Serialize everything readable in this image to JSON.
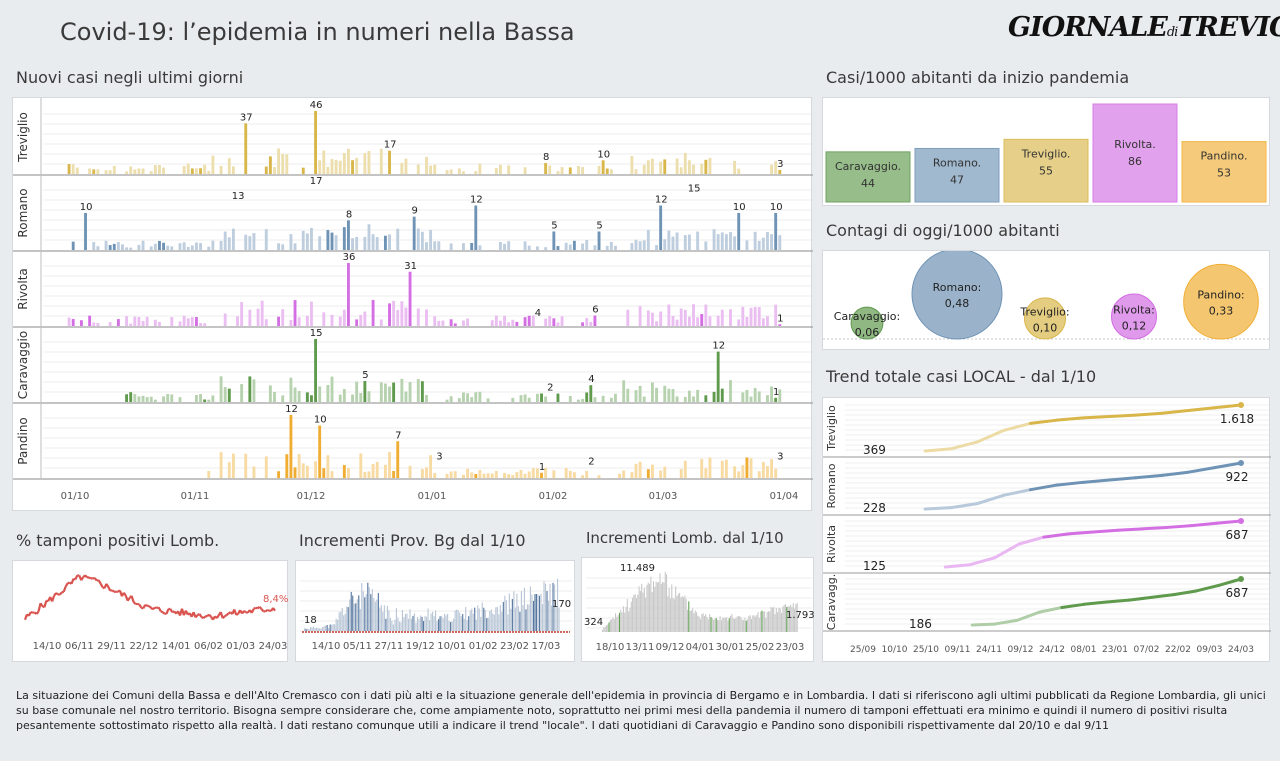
{
  "title": "Covid-19: l’epidemia  in numeri nella Bassa",
  "logo": {
    "main": "GIORNALE",
    "small": "di",
    "tail": "TREVIGLIO"
  },
  "sections": {
    "new_cases": "Nuovi casi negli ultimi  giorni",
    "per1000": "Casi/1000 abitanti da inizio pandemia",
    "today": "Contagi di oggi/1000 abitanti",
    "trend": "Trend totale casi  LOCAL - dal 1/10",
    "tamponi": "% tamponi positivi Lomb.",
    "prov_bg": "Incrementi Prov. Bg dal 1/10",
    "lomb": "Incrementi Lomb. dal 1/10"
  },
  "colors": {
    "treviglio": "#d8b64a",
    "romano": "#6f93b5",
    "rivolta": "#d36fe3",
    "caravaggio": "#5f9a4d",
    "pandino": "#f0ad33",
    "red": "#d9534f"
  },
  "footer": "La situazione dei Comuni della Bassa e dell'Alto Cremasco con i dati più alti e la situazione generale dell'epidemia in provincia di Bergamo e in Lombardia.  I dati si riferiscono agli ultimi pubblicati da Regione Lombardia, gli unici su base comunale nel  nostro territorio.  Bisogna sempre considerare che, come ampiamente noto, soprattutto nei primi mesi della pandemia il numero di tamponi effettuati era minimo e quindi il numero di positivi risulta pesantemente sottostimato rispetto alla realtà. I dati restano comunque utili a indicare il trend \"locale\".  I dati quotidiani di Caravaggio e Pandino sono disponibili rispettivamente dal 20/10 e dal 9/11",
  "chart_data": [
    {
      "type": "bar",
      "name": "new_cases",
      "x_ticks": [
        "01/10",
        "01/11",
        "01/12",
        "01/01",
        "01/02",
        "01/03",
        "01/04"
      ],
      "series": [
        {
          "name": "Treviglio",
          "ymax": 46,
          "labels": [
            {
              "day": 49,
              "value": 37
            },
            {
              "day": 66,
              "value": 46
            },
            {
              "day": 84,
              "value": 17
            },
            {
              "day": 122,
              "value": 8
            },
            {
              "day": 136,
              "value": 10
            },
            {
              "day": 179,
              "value": 3
            }
          ]
        },
        {
          "name": "Romano",
          "ymax": 17,
          "labels": [
            {
              "day": 10,
              "value": 10
            },
            {
              "day": 47,
              "value": 13
            },
            {
              "day": 66,
              "value": 17
            },
            {
              "day": 74,
              "value": 8
            },
            {
              "day": 90,
              "value": 9
            },
            {
              "day": 105,
              "value": 12
            },
            {
              "day": 124,
              "value": 5
            },
            {
              "day": 135,
              "value": 5
            },
            {
              "day": 169,
              "value": 10
            },
            {
              "day": 150,
              "value": 12
            },
            {
              "day": 158,
              "value": 15
            },
            {
              "day": 178,
              "value": 10
            }
          ]
        },
        {
          "name": "Rivolta",
          "ymax": 36,
          "labels": [
            {
              "day": 74,
              "value": 36
            },
            {
              "day": 89,
              "value": 31
            },
            {
              "day": 120,
              "value": 4
            },
            {
              "day": 134,
              "value": 6
            },
            {
              "day": 179,
              "value": 1
            }
          ]
        },
        {
          "name": "Caravaggio",
          "ymax": 15,
          "start_day": 20,
          "labels": [
            {
              "day": 66,
              "value": 15
            },
            {
              "day": 78,
              "value": 5
            },
            {
              "day": 123,
              "value": 2
            },
            {
              "day": 133,
              "value": 4
            },
            {
              "day": 164,
              "value": 12
            },
            {
              "day": 178,
              "value": 1
            }
          ]
        },
        {
          "name": "Pandino",
          "ymax": 12,
          "start_day": 40,
          "labels": [
            {
              "day": 60,
              "value": 12
            },
            {
              "day": 67,
              "value": 10
            },
            {
              "day": 86,
              "value": 7
            },
            {
              "day": 96,
              "value": 3
            },
            {
              "day": 121,
              "value": 1
            },
            {
              "day": 133,
              "value": 2
            },
            {
              "day": 179,
              "value": 3
            }
          ]
        }
      ]
    },
    {
      "type": "bar",
      "name": "per1000",
      "categories": [
        "Caravaggio.",
        "Romano.",
        "Treviglio.",
        "Rivolta.",
        "Pandino."
      ],
      "values": [
        44,
        47,
        55,
        86,
        53
      ],
      "value_labels": [
        "44",
        "47",
        "55",
        "86",
        "53"
      ]
    },
    {
      "type": "scatter",
      "name": "today",
      "categories": [
        "Caravaggio:",
        "Romano:",
        "Treviglio:",
        "Rivolta:",
        "Pandino:"
      ],
      "values": [
        0.06,
        0.48,
        0.1,
        0.12,
        0.33
      ],
      "value_labels": [
        "0,06",
        "0,48",
        "0,10",
        "0,12",
        "0,33"
      ]
    },
    {
      "type": "line",
      "name": "trend",
      "x_ticks": [
        "25/09",
        "10/10",
        "25/10",
        "09/11",
        "24/11",
        "09/12",
        "24/12",
        "08/01",
        "23/01",
        "07/02",
        "22/02",
        "09/03",
        "24/03"
      ],
      "series": [
        {
          "name": "Treviglio",
          "start": 369,
          "end": 1618,
          "start_label": "369",
          "end_label": "1.618"
        },
        {
          "name": "Romano",
          "start": 228,
          "end": 922,
          "start_label": "228",
          "end_label": "922"
        },
        {
          "name": "Rivolta",
          "start": 125,
          "end": 687,
          "start_label": "125",
          "end_label": "687"
        },
        {
          "name": "Caravagg.",
          "start": 186,
          "end": 687,
          "start_label": "186",
          "end_label": "687"
        }
      ]
    },
    {
      "type": "line",
      "name": "tamponi",
      "x_ticks": [
        "14/10",
        "06/11",
        "29/11",
        "22/12",
        "14/01",
        "06/02",
        "01/03",
        "24/03"
      ],
      "last_label": "8,4%"
    },
    {
      "type": "bar",
      "name": "prov_bg",
      "x_ticks": [
        "14/10",
        "05/11",
        "27/11",
        "19/12",
        "10/01",
        "01/02",
        "23/02",
        "17/03"
      ],
      "first_label": "18",
      "last_label": "170"
    },
    {
      "type": "bar",
      "name": "lomb",
      "x_ticks": [
        "18/10",
        "13/11",
        "09/12",
        "04/01",
        "30/01",
        "25/02",
        "23/03"
      ],
      "first_label": "324",
      "peak_label": "11.489",
      "last_label": "1.793"
    }
  ]
}
